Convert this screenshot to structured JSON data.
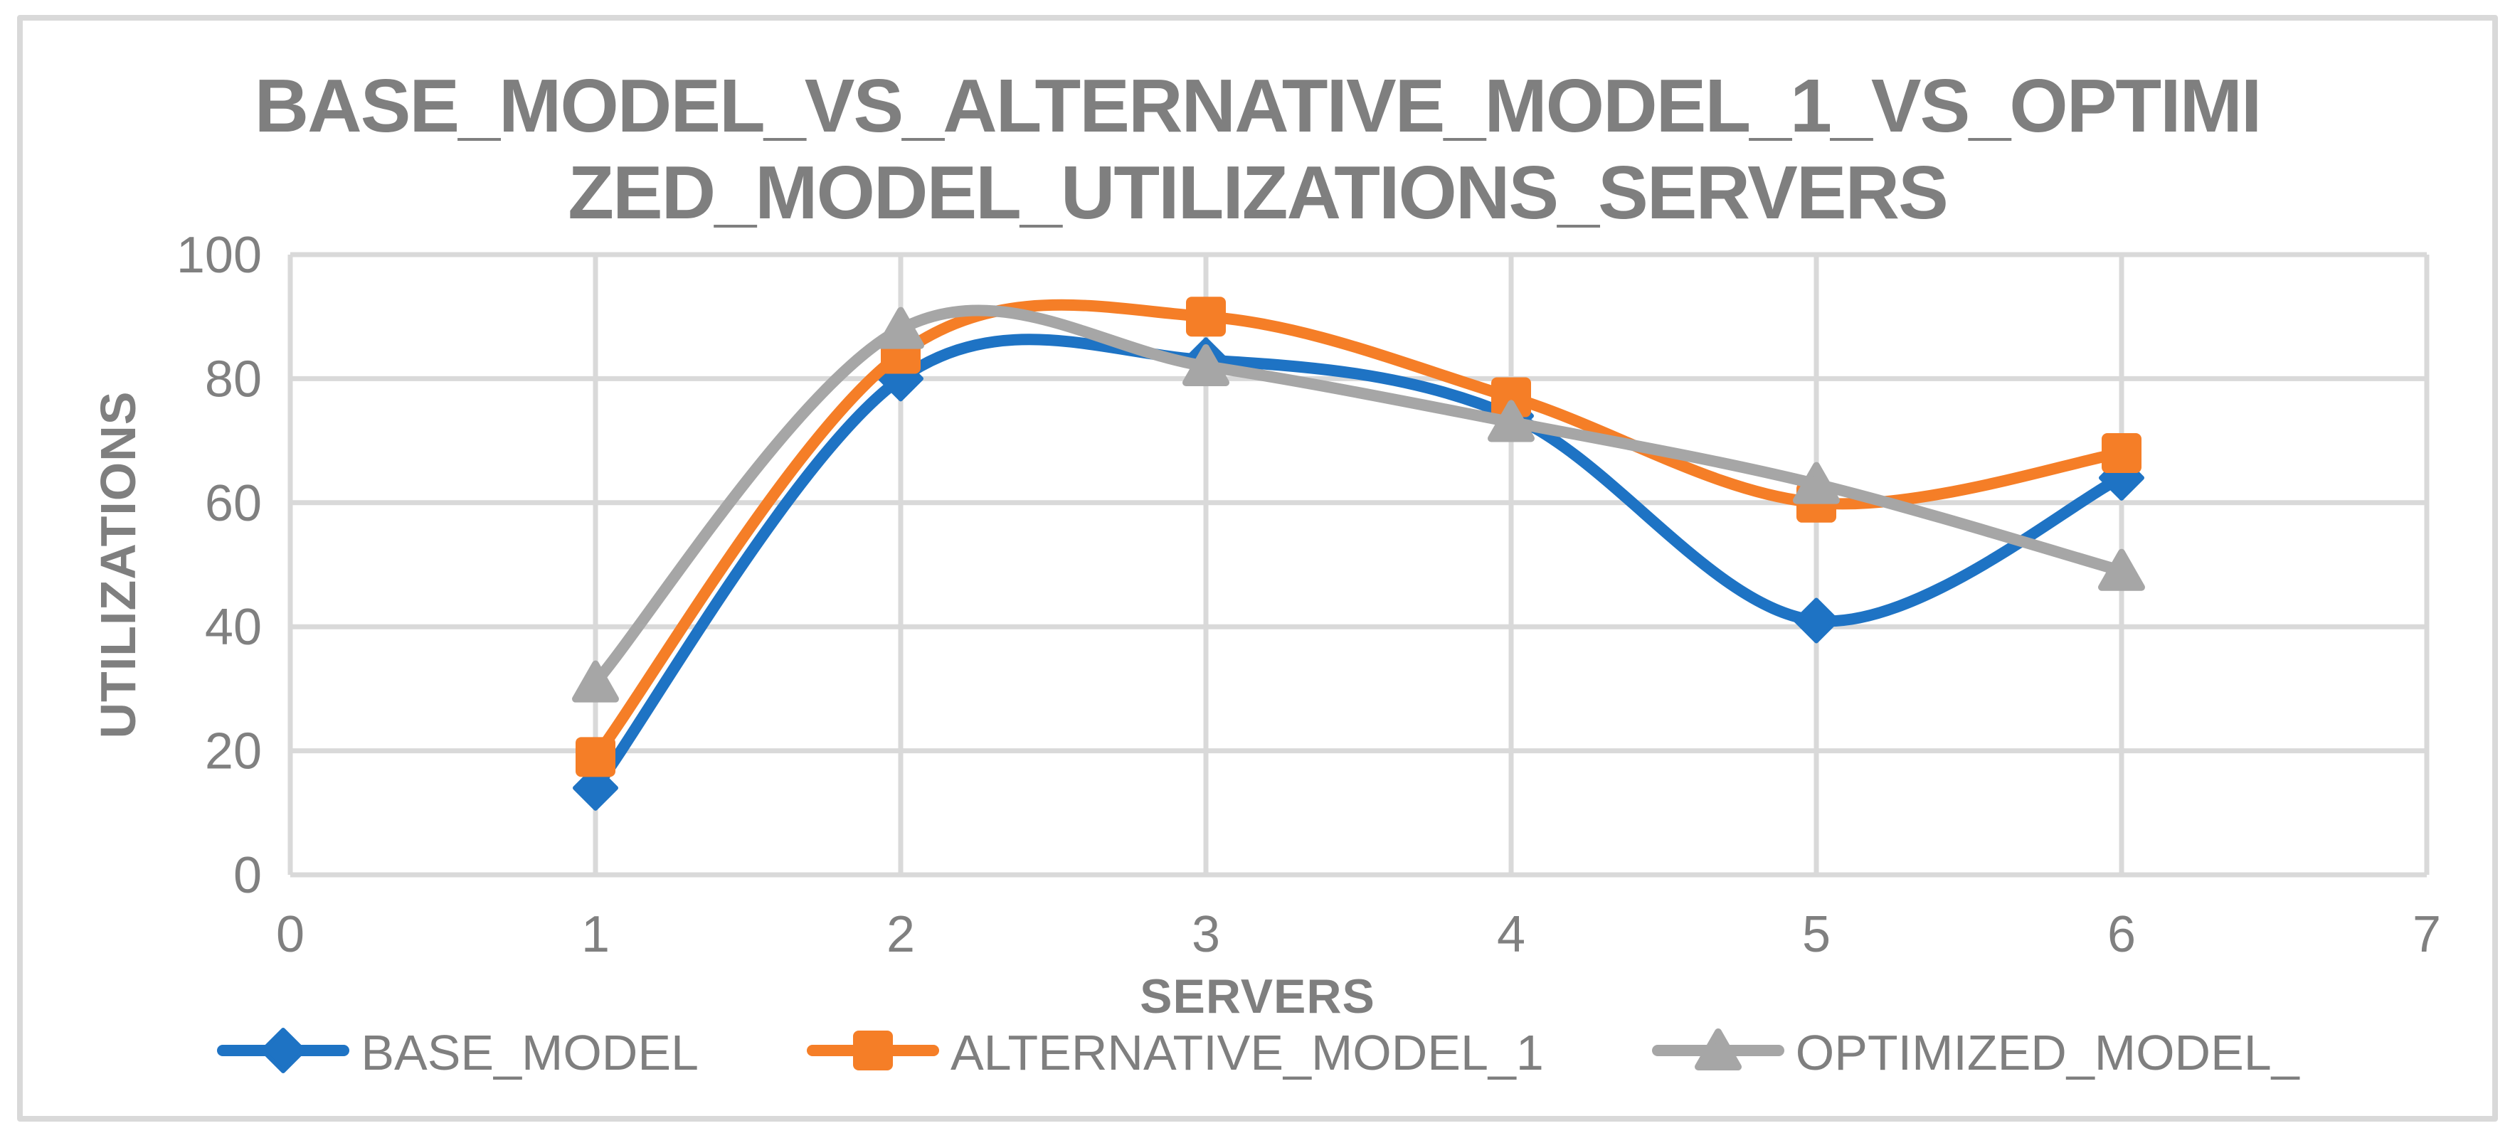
{
  "chart_data": {
    "type": "line",
    "title": "BASE_MODEL_VS_ALTERNATIVE_MODEL_1_VS_OPTIMIZED_MODEL_UTILIZATIONS_SERVERS",
    "title_lines": [
      "BASE_MODEL_VS_ALTERNATIVE_MODEL_1_VS_OPTIMI",
      "ZED_MODEL_UTILIZATIONS_SERVERS"
    ],
    "xlabel": "SERVERS",
    "ylabel": "UTILIZATIONS",
    "x": [
      1,
      2,
      3,
      4,
      5,
      6
    ],
    "xlim": [
      0,
      7
    ],
    "ylim": [
      0,
      100
    ],
    "x_ticks": [
      0,
      1,
      2,
      3,
      4,
      5,
      6,
      7
    ],
    "y_ticks": [
      0,
      20,
      40,
      60,
      80,
      100
    ],
    "grid": true,
    "line_style": "smooth",
    "legend_position": "bottom",
    "series": [
      {
        "name": "BASE_MODEL",
        "marker": "diamond",
        "color": "#1E73C4",
        "values": [
          14,
          80,
          83,
          74,
          41,
          64
        ]
      },
      {
        "name": "ALTERNATIVE_MODEL_1",
        "marker": "square",
        "color": "#F57E27",
        "values": [
          19,
          84,
          90,
          77,
          60,
          68
        ]
      },
      {
        "name": "OPTIMIZED_MODEL_",
        "marker": "triangle",
        "color": "#A6A6A6",
        "values": [
          31,
          88,
          82,
          73,
          63,
          49
        ]
      }
    ]
  },
  "colors": {
    "gridline": "#D9D9D9",
    "frame_border": "#D9D9D9",
    "text_gray": "#7F7F7F",
    "tick_gray": "#808080",
    "background": "#FFFFFF"
  }
}
